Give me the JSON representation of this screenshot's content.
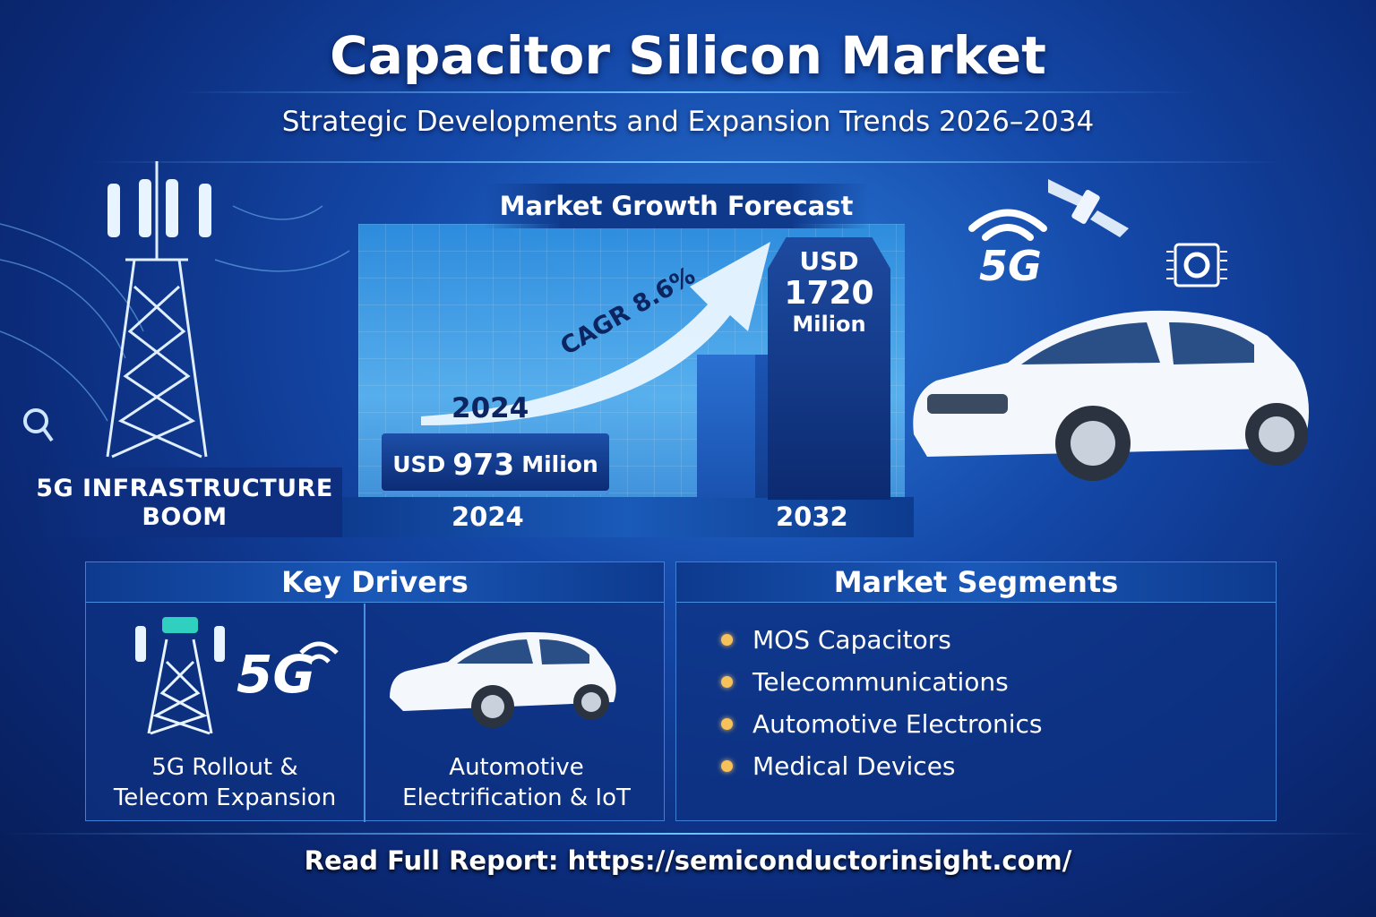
{
  "header": {
    "title": "Capacitor Silicon Market",
    "subtitle": "Strategic Developments and Expansion Trends 2026–2034"
  },
  "forecast": {
    "heading": "Market Growth Forecast",
    "start": {
      "year_label_top": "2024",
      "prefix": "USD",
      "value": "973",
      "unit": "Milion",
      "year": "2024"
    },
    "end": {
      "prefix": "USD",
      "value": "1720",
      "unit": "Milion",
      "year": "2032"
    },
    "cagr": "CAGR 8.6%"
  },
  "left_banner": {
    "line1": "5G INFRASTRUCTURE",
    "line2": "BOOM"
  },
  "icons": [
    "cell-tower-icon",
    "5g-wifi-icon",
    "satellite-icon",
    "chip-icon",
    "car-icon"
  ],
  "badge_5g": "5G",
  "key_drivers": {
    "heading": "Key Drivers",
    "items": [
      {
        "line1": "5G Rollout &",
        "line2": "Telecom Expansion",
        "badge": "5G"
      },
      {
        "line1": "Automotive",
        "line2": "Electrification & IoT"
      }
    ]
  },
  "market_segments": {
    "heading": "Market Segments",
    "items": [
      "MOS Capacitors",
      "Telecommunications",
      "Automotive Electronics",
      "Medical Devices"
    ],
    "bullet_color": "#f7c25a"
  },
  "footer": {
    "label": "Read Full Report:",
    "url": "https://semiconductorinsight.com/"
  },
  "colors": {
    "background": "#0b2a78",
    "accent": "#6fc4ff",
    "dark_text": "#0c2460"
  }
}
